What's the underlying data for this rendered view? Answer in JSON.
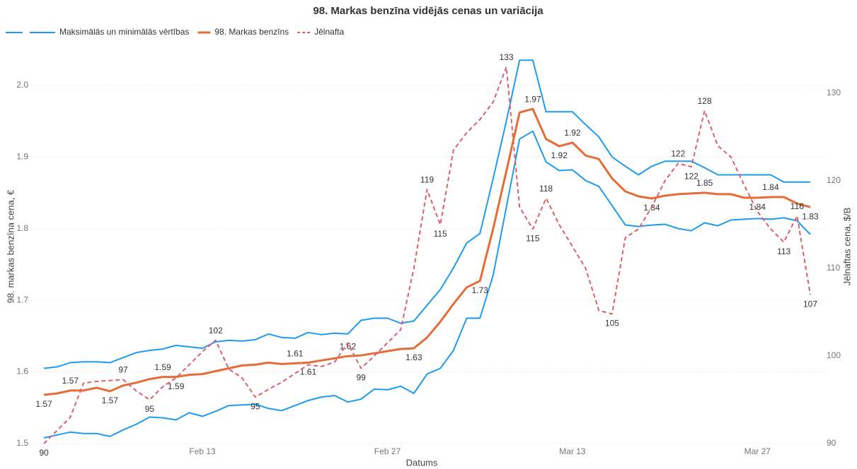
{
  "chart_data": {
    "type": "line",
    "title": "98. Markas benzīna vidējās cenas un variācija",
    "xlabel": "Datums",
    "ylabel": "98. markas benzīna cena, €",
    "y2label": "Jēlnaftas cena, $/B",
    "categories": [
      null,
      null,
      null,
      null,
      null,
      null,
      null,
      null,
      null,
      null,
      null,
      null,
      "Feb 13",
      null,
      null,
      null,
      null,
      null,
      null,
      null,
      null,
      null,
      null,
      null,
      null,
      null,
      "Feb 27",
      null,
      null,
      null,
      null,
      null,
      null,
      null,
      null,
      null,
      null,
      null,
      null,
      null,
      "Mar 13",
      null,
      null,
      null,
      null,
      null,
      null,
      null,
      null,
      null,
      null,
      null,
      null,
      null,
      "Mar 27",
      null,
      null,
      null,
      null
    ],
    "ylim": [
      1.5,
      2.05
    ],
    "yticks": [
      1.5,
      1.6,
      1.7,
      1.8,
      1.9,
      {
        "value": 2,
        "label": "2.0"
      }
    ],
    "y2lim": [
      90,
      135
    ],
    "y2ticks": [
      90,
      100,
      110,
      120,
      130
    ],
    "grid": true,
    "legend": "top-left",
    "series": [
      {
        "name": "Maksimālās un minimālās vērtības",
        "color": "#1e9bf0",
        "values": [
          1.605,
          1.607,
          1.613,
          1.614,
          1.614,
          1.613,
          1.62,
          1.627,
          1.63,
          1.632,
          1.637,
          1.635,
          1.633,
          1.642,
          1.644,
          1.643,
          1.645,
          1.653,
          1.648,
          1.647,
          1.655,
          1.652,
          1.654,
          1.653,
          1.672,
          1.675,
          1.675,
          1.668,
          1.671,
          1.693,
          1.715,
          1.745,
          1.78,
          1.793,
          1.87,
          1.95,
          2.035,
          2.035,
          1.963,
          1.963,
          1.963,
          1.945,
          1.928,
          1.9,
          1.887,
          1.875,
          1.887,
          1.894,
          1.894,
          1.894,
          1.885,
          1.875,
          1.875,
          1.875,
          1.875,
          1.875,
          1.865,
          1.865,
          1.865
        ],
        "min_values": [
          1.508,
          1.512,
          1.516,
          1.514,
          1.514,
          1.51,
          1.519,
          1.527,
          1.537,
          1.536,
          1.533,
          1.543,
          1.538,
          1.545,
          1.553,
          1.554,
          1.555,
          1.549,
          1.546,
          1.553,
          1.56,
          1.565,
          1.567,
          1.558,
          1.562,
          1.576,
          1.575,
          1.58,
          1.57,
          1.597,
          1.605,
          1.63,
          1.675,
          1.675,
          1.735,
          1.83,
          1.925,
          1.936,
          1.893,
          1.881,
          1.882,
          1.867,
          1.859,
          1.832,
          1.805,
          1.803,
          1.805,
          1.806,
          1.8,
          1.797,
          1.808,
          1.804,
          1.812,
          1.813,
          1.814,
          1.813,
          1.815,
          1.811,
          1.792
        ]
      },
      {
        "name": "98. Markas benzīns",
        "color": "#e66c37",
        "values": [
          1.568,
          1.57,
          1.574,
          1.574,
          1.578,
          1.573,
          1.581,
          1.585,
          1.59,
          1.593,
          1.593,
          1.596,
          1.597,
          1.601,
          1.605,
          1.609,
          1.61,
          1.613,
          1.611,
          1.612,
          1.613,
          1.616,
          1.619,
          1.622,
          1.623,
          1.626,
          1.629,
          1.632,
          1.633,
          1.648,
          1.67,
          1.695,
          1.718,
          1.727,
          1.8,
          1.88,
          1.962,
          1.967,
          1.925,
          1.915,
          1.92,
          1.902,
          1.897,
          1.87,
          1.852,
          1.845,
          1.842,
          1.846,
          1.848,
          1.849,
          1.85,
          1.848,
          1.848,
          1.843,
          1.843,
          1.844,
          1.844,
          1.835,
          1.83
        ],
        "value_labels": [
          "1.57",
          null,
          "1.57",
          null,
          null,
          "1.57",
          null,
          null,
          null,
          "1.59",
          "1.59",
          null,
          null,
          null,
          null,
          null,
          null,
          null,
          null,
          "1.61",
          "1.61",
          null,
          null,
          "1.62",
          null,
          null,
          null,
          null,
          "1.63",
          null,
          null,
          null,
          null,
          "1.73",
          null,
          null,
          null,
          "1.97",
          null,
          "1.92",
          "1.92",
          null,
          null,
          null,
          null,
          null,
          "1.84",
          null,
          null,
          null,
          "1.85",
          null,
          null,
          null,
          "1.84",
          "1.84",
          null,
          null,
          "1.83"
        ]
      },
      {
        "name": "Jēlnafta",
        "color": "#dc5f6e",
        "axis": "y2",
        "dashed": true,
        "values": [
          90,
          91.5,
          93,
          96.9,
          97.1,
          97.2,
          97.3,
          96,
          95,
          96.5,
          97.5,
          99,
          100.5,
          101.8,
          98.5,
          97.5,
          95.3,
          96.2,
          97,
          98,
          99,
          98.8,
          99.3,
          101.5,
          98.6,
          100,
          101.5,
          103,
          110,
          119,
          115,
          123.5,
          125.5,
          127,
          129,
          133,
          117,
          114.5,
          118,
          115,
          112.5,
          110,
          105.2,
          104.8,
          113.5,
          114.5,
          117,
          120,
          122,
          121.6,
          128,
          124,
          122.7,
          119.5,
          116.5,
          114.5,
          113,
          116,
          107
        ],
        "value_labels": [
          "90",
          null,
          null,
          null,
          null,
          null,
          "97",
          null,
          "95",
          null,
          null,
          null,
          null,
          "102",
          null,
          null,
          "95",
          null,
          null,
          null,
          null,
          null,
          null,
          null,
          "99",
          null,
          null,
          null,
          null,
          "119",
          "115",
          null,
          null,
          null,
          null,
          "133",
          null,
          "115",
          "118",
          null,
          null,
          null,
          null,
          "105",
          null,
          null,
          null,
          null,
          "122",
          "122",
          "128",
          null,
          null,
          null,
          null,
          null,
          "113",
          "116",
          "107"
        ]
      }
    ]
  }
}
